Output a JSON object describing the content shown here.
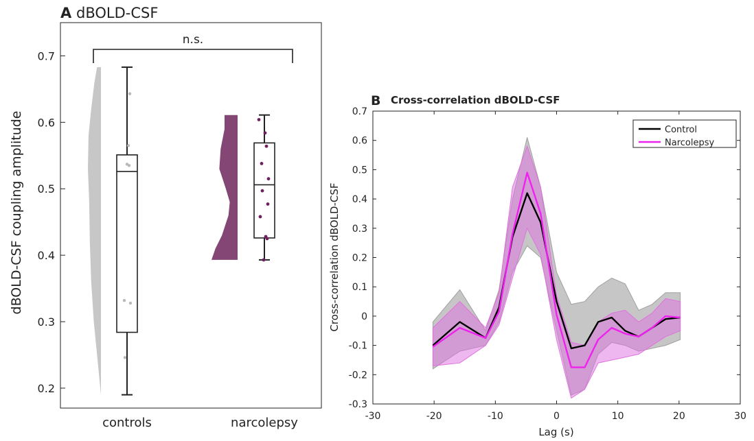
{
  "chart_data": [
    {
      "type": "box",
      "panel_letter": "A",
      "title": "dBOLD-CSF",
      "ylabel": "dBOLD-CSF coupling amplitude",
      "categories": [
        "controls",
        "narcolepsy"
      ],
      "ylim": [
        0.17,
        0.75
      ],
      "yticks": [
        "0.2",
        "0.3",
        "0.4",
        "0.5",
        "0.6",
        "0.7"
      ],
      "yticks_values": [
        0.2,
        0.3,
        0.4,
        0.5,
        0.6,
        0.7
      ],
      "significance": "n.s.",
      "groups": [
        {
          "name": "controls",
          "color": "#bdbdbd",
          "box": {
            "min": 0.19,
            "q1": 0.284,
            "median": 0.526,
            "q3": 0.551,
            "max": 0.683
          },
          "points": [
            0.643,
            0.565,
            0.537,
            0.535,
            0.332,
            0.328,
            0.246
          ],
          "density": [
            [
              0.19,
              0.0
            ],
            [
              0.24,
              0.25
            ],
            [
              0.3,
              0.55
            ],
            [
              0.36,
              0.75
            ],
            [
              0.42,
              0.85
            ],
            [
              0.48,
              0.9
            ],
            [
              0.53,
              1.0
            ],
            [
              0.58,
              0.95
            ],
            [
              0.62,
              0.75
            ],
            [
              0.66,
              0.5
            ],
            [
              0.683,
              0.3
            ]
          ]
        },
        {
          "name": "narcolepsy",
          "color": "#7d3c6e",
          "box": {
            "min": 0.393,
            "q1": 0.426,
            "median": 0.506,
            "q3": 0.569,
            "max": 0.611
          },
          "points": [
            0.604,
            0.584,
            0.564,
            0.538,
            0.515,
            0.497,
            0.477,
            0.458,
            0.428,
            0.425,
            0.393
          ],
          "density": [
            [
              0.393,
              1.0
            ],
            [
              0.41,
              0.85
            ],
            [
              0.43,
              0.6
            ],
            [
              0.46,
              0.35
            ],
            [
              0.48,
              0.3
            ],
            [
              0.5,
              0.45
            ],
            [
              0.53,
              0.7
            ],
            [
              0.56,
              0.65
            ],
            [
              0.59,
              0.5
            ],
            [
              0.611,
              0.5
            ]
          ]
        }
      ]
    },
    {
      "type": "line",
      "panel_letter": "B",
      "title": "Cross-correlation dBOLD-CSF",
      "xlabel": "Lag (s)",
      "ylabel": "Cross-correlation dBOLD-CSF",
      "xlim": [
        -30,
        30
      ],
      "ylim": [
        -0.3,
        0.7
      ],
      "xticks": [
        "-30",
        "-20",
        "-10",
        "0",
        "10",
        "20",
        "30"
      ],
      "xticks_values": [
        -30,
        -20,
        -10,
        0,
        10,
        20,
        30
      ],
      "yticks": [
        "-0.3",
        "-0.2",
        "-0.1",
        "0",
        "0.1",
        "0.2",
        "0.3",
        "0.4",
        "0.5",
        "0.6",
        "0.7"
      ],
      "yticks_values": [
        -0.3,
        -0.2,
        -0.1,
        0,
        0.1,
        0.2,
        0.3,
        0.4,
        0.5,
        0.6,
        0.7
      ],
      "legend_position": "top-right",
      "x": [
        -20.2,
        -15.8,
        -11.6,
        -9.4,
        -7.2,
        -4.8,
        -2.6,
        0,
        2.4,
        4.6,
        6.8,
        9.0,
        11.2,
        13.4,
        15.6,
        17.8,
        20.2
      ],
      "series": [
        {
          "name": "Control",
          "color": "#000000",
          "band_color": "#a0a0a0",
          "values": [
            -0.1,
            -0.02,
            -0.075,
            0.03,
            0.27,
            0.42,
            0.32,
            0.05,
            -0.11,
            -0.1,
            -0.02,
            -0.005,
            -0.05,
            -0.07,
            -0.04,
            -0.01,
            -0.005
          ],
          "lower": [
            -0.18,
            -0.12,
            -0.1,
            -0.02,
            0.15,
            0.24,
            0.2,
            -0.05,
            -0.27,
            -0.25,
            -0.13,
            -0.09,
            -0.1,
            -0.12,
            -0.11,
            -0.1,
            -0.08
          ],
          "upper": [
            -0.02,
            0.09,
            -0.05,
            0.09,
            0.4,
            0.61,
            0.44,
            0.15,
            0.04,
            0.05,
            0.1,
            0.13,
            0.11,
            0.02,
            0.04,
            0.08,
            0.08
          ]
        },
        {
          "name": "Narcolepsy",
          "color": "#ee22ee",
          "band_color": "#e070e0",
          "values": [
            -0.105,
            -0.04,
            -0.075,
            0.015,
            0.28,
            0.49,
            0.35,
            0.005,
            -0.175,
            -0.175,
            -0.08,
            -0.04,
            -0.06,
            -0.07,
            -0.04,
            0.0,
            -0.005
          ],
          "lower": [
            -0.17,
            -0.16,
            -0.1,
            -0.03,
            0.13,
            0.3,
            0.21,
            -0.08,
            -0.28,
            -0.25,
            -0.16,
            -0.15,
            -0.14,
            -0.13,
            -0.1,
            -0.07,
            -0.05
          ],
          "upper": [
            -0.04,
            0.05,
            -0.04,
            0.08,
            0.44,
            0.58,
            0.44,
            0.07,
            -0.09,
            -0.1,
            -0.02,
            0.01,
            0.02,
            -0.02,
            0.01,
            0.06,
            0.05
          ]
        }
      ]
    }
  ]
}
